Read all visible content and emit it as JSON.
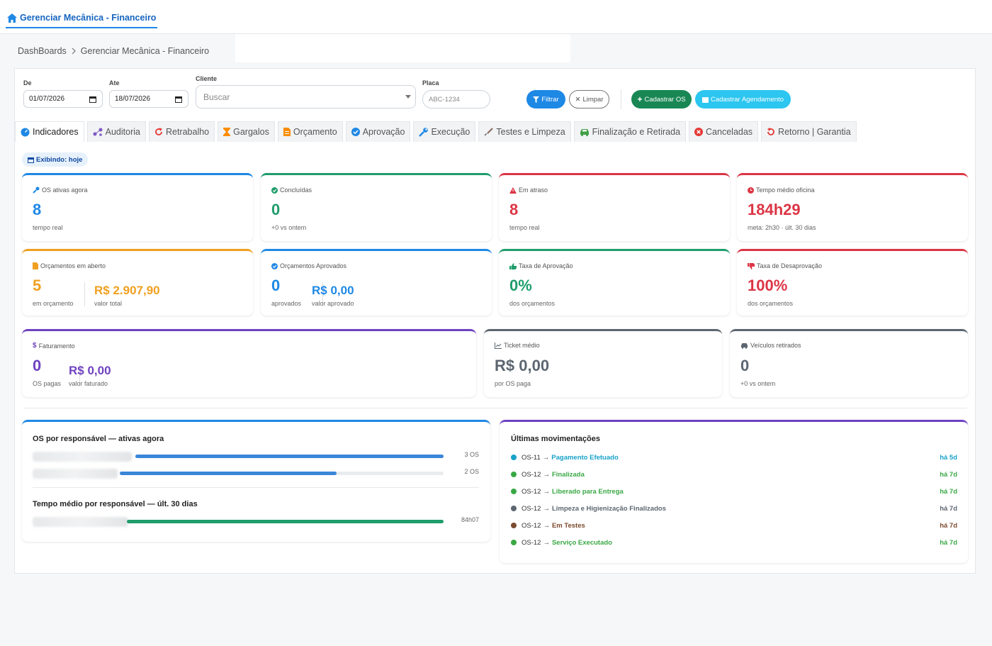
{
  "app": {
    "title": "Gerenciar Mecânica - Financeiro"
  },
  "breadcrumb": {
    "root": "DashBoards",
    "current": "Gerenciar Mecânica - Financeiro"
  },
  "filters": {
    "de_label": "De",
    "de_value": "01/07/2026",
    "ate_label": "Ate",
    "ate_value": "18/07/2026",
    "cliente_label": "Cliente",
    "cliente_placeholder": "Buscar",
    "placa_label": "Placa",
    "placa_placeholder": "ABC-1234",
    "filtrar": "Filtrar",
    "limpar": "Limpar",
    "cadastrar_os": "Cadastrar OS",
    "cadastrar_agendamento": "Cadastrar Agendamento"
  },
  "tabs": [
    {
      "label": "Indicadores",
      "icon": "dashboard-icon",
      "color": "#1e88e5"
    },
    {
      "label": "Auditoria",
      "icon": "diagram-icon",
      "color": "#7e57c2"
    },
    {
      "label": "Retrabalho",
      "icon": "redo-icon",
      "color": "#e53935"
    },
    {
      "label": "Gargalos",
      "icon": "hourglass-icon",
      "color": "#fb8c00"
    },
    {
      "label": "Orçamento",
      "icon": "document-icon",
      "color": "#fb8c00"
    },
    {
      "label": "Aprovação",
      "icon": "check-circle-icon",
      "color": "#1e88e5"
    },
    {
      "label": "Execução",
      "icon": "wrench-icon",
      "color": "#1e88e5"
    },
    {
      "label": "Testes e Limpeza",
      "icon": "brush-icon",
      "color": "#8d6e63"
    },
    {
      "label": "Finalização e Retirada",
      "icon": "car-icon",
      "color": "#43a047"
    },
    {
      "label": "Canceladas",
      "icon": "x-circle-icon",
      "color": "#e53935"
    },
    {
      "label": "Retorno | Garantia",
      "icon": "undo-icon",
      "color": "#e53935"
    }
  ],
  "exhibiting": "Exibindo: hoje",
  "cards": {
    "os_ativas": {
      "label": "OS ativas agora",
      "value": "8",
      "sub": "tempo real",
      "color": "#1e88e5"
    },
    "concluidas": {
      "label": "Concluídas",
      "value": "0",
      "sub": "+0 vs ontem",
      "color": "#1f9d6b"
    },
    "em_atraso": {
      "label": "Em atraso",
      "value": "8",
      "sub": "tempo real",
      "color": "#dc3545"
    },
    "tempo_medio": {
      "label": "Tempo médio oficina",
      "value": "184h29",
      "sub": "meta: 2h30 · últ. 30 dias",
      "color": "#dc3545"
    },
    "orc_aberto": {
      "label": "Orçamentos em aberto",
      "value": "5",
      "sub": "em orçamento",
      "value2": "R$ 2.907,90",
      "sub2": "valor total",
      "color": "#f0a020"
    },
    "orc_aprovados": {
      "label": "Orçamentos Aprovados",
      "value": "0",
      "sub": "aprovados",
      "value2": "R$ 0,00",
      "sub2": "valor aprovado",
      "color": "#1e88e5"
    },
    "taxa_aprov": {
      "label": "Taxa de Aprovação",
      "value": "0%",
      "sub": "dos orçamentos",
      "color": "#1f9d6b"
    },
    "taxa_desaprov": {
      "label": "Taxa de Desaprovação",
      "value": "100%",
      "sub": "dos orçamentos",
      "color": "#dc3545"
    },
    "faturamento": {
      "label": "Faturamento",
      "value": "0",
      "sub": "OS pagas",
      "value2": "R$ 0,00",
      "sub2": "valor faturado",
      "color": "#6f42c1"
    },
    "ticket": {
      "label": "Ticket médio",
      "value": "R$ 0,00",
      "sub": "por OS paga",
      "color": "#5c6670"
    },
    "veiculos": {
      "label": "Veículos retirados",
      "value": "0",
      "sub": "+0 vs ontem",
      "color": "#5c6670"
    }
  },
  "responsavel": {
    "title": "OS por responsável — ativas agora",
    "rows": [
      {
        "value": "3 OS",
        "fraction": 1.0
      },
      {
        "value": "2 OS",
        "fraction": 0.67
      }
    ],
    "tempo_title": "Tempo médio por responsável — últ. 30 dias",
    "tempo_rows": [
      {
        "value": "84h07",
        "fraction": 1.0
      }
    ]
  },
  "movimentacoes": {
    "title": "Últimas movimentações",
    "items": [
      {
        "os": "OS-11",
        "status": "Pagamento Efetuado",
        "time": "há 5d",
        "color": "#17a2c8"
      },
      {
        "os": "OS-12",
        "status": "Finalizada",
        "time": "há 7d",
        "color": "#3aa845"
      },
      {
        "os": "OS-12",
        "status": "Liberado para Entrega",
        "time": "há 7d",
        "color": "#3aa845"
      },
      {
        "os": "OS-12",
        "status": "Limpeza e Higienização Finalizados",
        "time": "há 7d",
        "color": "#5c6670"
      },
      {
        "os": "OS-12",
        "status": "Em Testes",
        "time": "há 7d",
        "color": "#7b4a2e"
      },
      {
        "os": "OS-12",
        "status": "Serviço Executado",
        "time": "há 7d",
        "color": "#3aa845"
      }
    ],
    "arrow": "→"
  }
}
